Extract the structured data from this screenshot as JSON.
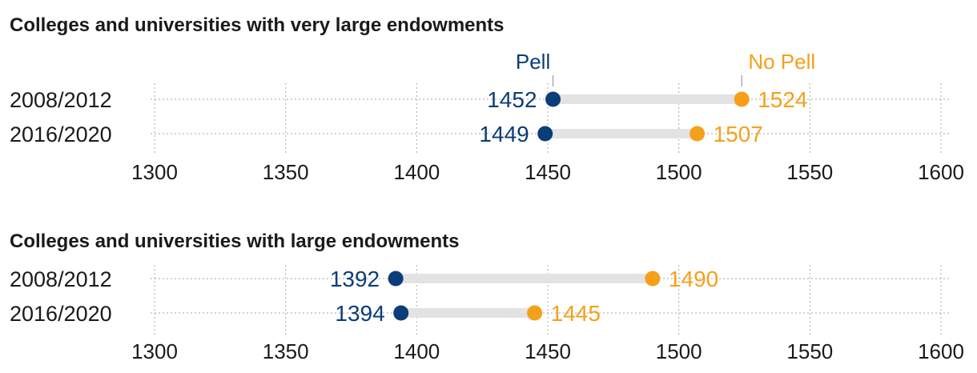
{
  "colors": {
    "pell": "#0b3d78",
    "no_pell": "#f5a01a",
    "connector": "#e3e3e3",
    "grid": "#b8b8b8"
  },
  "legend": {
    "pell": "Pell",
    "no_pell": "No Pell"
  },
  "chart_data": [
    {
      "type": "dumbbell",
      "title": "Colleges and universities with very large endowments",
      "categories": [
        "2008/2012",
        "2016/2020"
      ],
      "series": [
        {
          "name": "Pell",
          "values": [
            1452,
            1449
          ]
        },
        {
          "name": "No Pell",
          "values": [
            1524,
            1507
          ]
        }
      ],
      "xlim": [
        1300,
        1600
      ],
      "xticks": [
        1300,
        1350,
        1400,
        1450,
        1500,
        1550,
        1600
      ],
      "grid": true
    },
    {
      "type": "dumbbell",
      "title": "Colleges and universities with large endowments",
      "categories": [
        "2008/2012",
        "2016/2020"
      ],
      "series": [
        {
          "name": "Pell",
          "values": [
            1392,
            1394
          ]
        },
        {
          "name": "No Pell",
          "values": [
            1490,
            1445
          ]
        }
      ],
      "xlim": [
        1300,
        1600
      ],
      "xticks": [
        1300,
        1350,
        1400,
        1450,
        1500,
        1550,
        1600
      ],
      "grid": true
    }
  ]
}
